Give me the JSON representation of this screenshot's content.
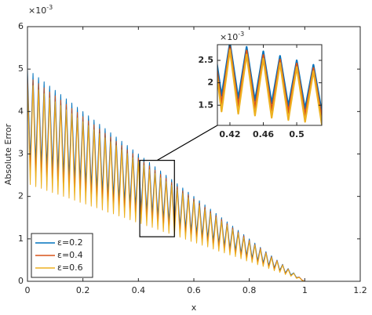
{
  "chart_data": [
    {
      "type": "line",
      "xlabel": "x",
      "ylabel": "Absolute Error",
      "y_exponent": {
        "base": "×10",
        "power": "-3"
      },
      "xlim": [
        0,
        1.2
      ],
      "ylim": [
        0,
        6
      ],
      "xticks": [
        0,
        0.2,
        0.4,
        0.6,
        0.8,
        1,
        1.2
      ],
      "yticks": [
        0,
        1,
        2,
        3,
        4,
        5,
        6
      ],
      "legend": "southwest",
      "x": [
        0,
        0.01,
        0.02,
        0.03,
        0.04,
        0.05,
        0.06,
        0.07,
        0.08,
        0.09,
        0.1,
        0.11,
        0.12,
        0.13,
        0.14,
        0.15,
        0.16,
        0.17,
        0.18,
        0.19,
        0.2,
        0.21,
        0.22,
        0.23,
        0.24,
        0.25,
        0.26,
        0.27,
        0.28,
        0.29,
        0.3,
        0.31,
        0.32,
        0.33,
        0.34,
        0.35,
        0.36,
        0.37,
        0.38,
        0.39,
        0.4,
        0.41,
        0.42,
        0.43,
        0.44,
        0.45,
        0.46,
        0.47,
        0.48,
        0.49,
        0.5,
        0.51,
        0.52,
        0.53,
        0.54,
        0.55,
        0.56,
        0.57,
        0.58,
        0.59,
        0.6,
        0.61,
        0.62,
        0.63,
        0.64,
        0.65,
        0.66,
        0.67,
        0.68,
        0.69,
        0.7,
        0.71,
        0.72,
        0.73,
        0.74,
        0.75,
        0.76,
        0.77,
        0.78,
        0.79,
        0.8,
        0.81,
        0.82,
        0.83,
        0.84,
        0.85,
        0.86,
        0.87,
        0.88,
        0.89,
        0.9,
        0.91,
        0.92,
        0.93,
        0.94,
        0.95,
        0.96,
        0.97,
        0.98,
        0.99,
        1
      ],
      "series": [
        {
          "name": "ε=0.2",
          "color": "#0072bd",
          "values": [
            5.0,
            2.87,
            4.9,
            2.81,
            4.8,
            2.76,
            4.7,
            2.7,
            4.6,
            2.64,
            4.5,
            2.58,
            4.4,
            2.52,
            4.3,
            2.47,
            4.2,
            2.41,
            4.1,
            2.35,
            4.0,
            2.29,
            3.9,
            2.23,
            3.8,
            2.18,
            3.7,
            2.12,
            3.6,
            2.06,
            3.5,
            2.0,
            3.4,
            1.94,
            3.3,
            1.89,
            3.2,
            1.83,
            3.1,
            1.77,
            3.0,
            1.71,
            2.9,
            1.65,
            2.8,
            1.6,
            2.7,
            1.54,
            2.6,
            1.48,
            2.5,
            1.42,
            2.4,
            1.36,
            2.3,
            1.31,
            2.2,
            1.25,
            2.1,
            1.19,
            2.0,
            1.13,
            1.9,
            1.07,
            1.8,
            1.02,
            1.7,
            0.96,
            1.6,
            0.9,
            1.5,
            0.84,
            1.4,
            0.78,
            1.3,
            0.73,
            1.2,
            0.67,
            1.1,
            0.61,
            1.0,
            0.55,
            0.9,
            0.49,
            0.8,
            0.44,
            0.7,
            0.38,
            0.6,
            0.32,
            0.5,
            0.26,
            0.4,
            0.2,
            0.3,
            0.15,
            0.2,
            0.09,
            0.1,
            0.03,
            0
          ]
        },
        {
          "name": "ε=0.4",
          "color": "#d95319",
          "values": [
            4.85,
            2.57,
            4.75,
            2.52,
            4.66,
            2.47,
            4.56,
            2.42,
            4.46,
            2.37,
            4.37,
            2.31,
            4.27,
            2.26,
            4.17,
            2.21,
            4.07,
            2.16,
            3.98,
            2.11,
            3.88,
            2.05,
            3.78,
            2.0,
            3.69,
            1.95,
            3.59,
            1.9,
            3.49,
            1.85,
            3.4,
            1.79,
            3.3,
            1.74,
            3.2,
            1.69,
            3.1,
            1.64,
            3.01,
            1.59,
            2.91,
            1.53,
            2.81,
            1.48,
            2.72,
            1.43,
            2.62,
            1.38,
            2.52,
            1.33,
            2.43,
            1.27,
            2.33,
            1.22,
            2.23,
            1.17,
            2.13,
            1.12,
            2.04,
            1.07,
            1.94,
            1.01,
            1.84,
            0.96,
            1.75,
            0.91,
            1.65,
            0.86,
            1.55,
            0.81,
            1.46,
            0.75,
            1.36,
            0.7,
            1.26,
            0.65,
            1.16,
            0.6,
            1.07,
            0.55,
            0.97,
            0.49,
            0.87,
            0.44,
            0.78,
            0.39,
            0.68,
            0.34,
            0.58,
            0.29,
            0.49,
            0.23,
            0.39,
            0.18,
            0.29,
            0.13,
            0.19,
            0.08,
            0.1,
            0.03,
            0
          ]
        },
        {
          "name": "ε=0.6",
          "color": "#edb120",
          "values": [
            4.7,
            2.28,
            4.61,
            2.23,
            4.51,
            2.19,
            4.42,
            2.14,
            4.32,
            2.09,
            4.23,
            2.05,
            4.14,
            2.0,
            4.04,
            1.96,
            3.95,
            1.91,
            3.85,
            1.86,
            3.76,
            1.82,
            3.67,
            1.77,
            3.57,
            1.73,
            3.48,
            1.68,
            3.38,
            1.63,
            3.29,
            1.59,
            3.2,
            1.54,
            3.1,
            1.5,
            3.01,
            1.45,
            2.91,
            1.4,
            2.82,
            1.36,
            2.73,
            1.31,
            2.63,
            1.27,
            2.54,
            1.22,
            2.44,
            1.17,
            2.35,
            1.13,
            2.26,
            1.08,
            2.16,
            1.04,
            2.07,
            0.99,
            1.97,
            0.94,
            1.88,
            0.9,
            1.79,
            0.85,
            1.69,
            0.81,
            1.6,
            0.76,
            1.5,
            0.71,
            1.41,
            0.67,
            1.32,
            0.62,
            1.22,
            0.58,
            1.13,
            0.53,
            1.03,
            0.48,
            0.94,
            0.44,
            0.85,
            0.39,
            0.75,
            0.35,
            0.66,
            0.3,
            0.56,
            0.25,
            0.47,
            0.21,
            0.38,
            0.16,
            0.28,
            0.12,
            0.19,
            0.07,
            0.09,
            0.02,
            0
          ]
        }
      ]
    },
    {
      "type": "line",
      "y_exponent": {
        "base": "×10",
        "power": "-3"
      },
      "xlim": [
        0.405,
        0.53
      ],
      "ylim": [
        1.05,
        2.85
      ],
      "xticks": [
        0.42,
        0.46,
        0.5
      ],
      "yticks": [
        1.5,
        2,
        2.5
      ]
    }
  ]
}
